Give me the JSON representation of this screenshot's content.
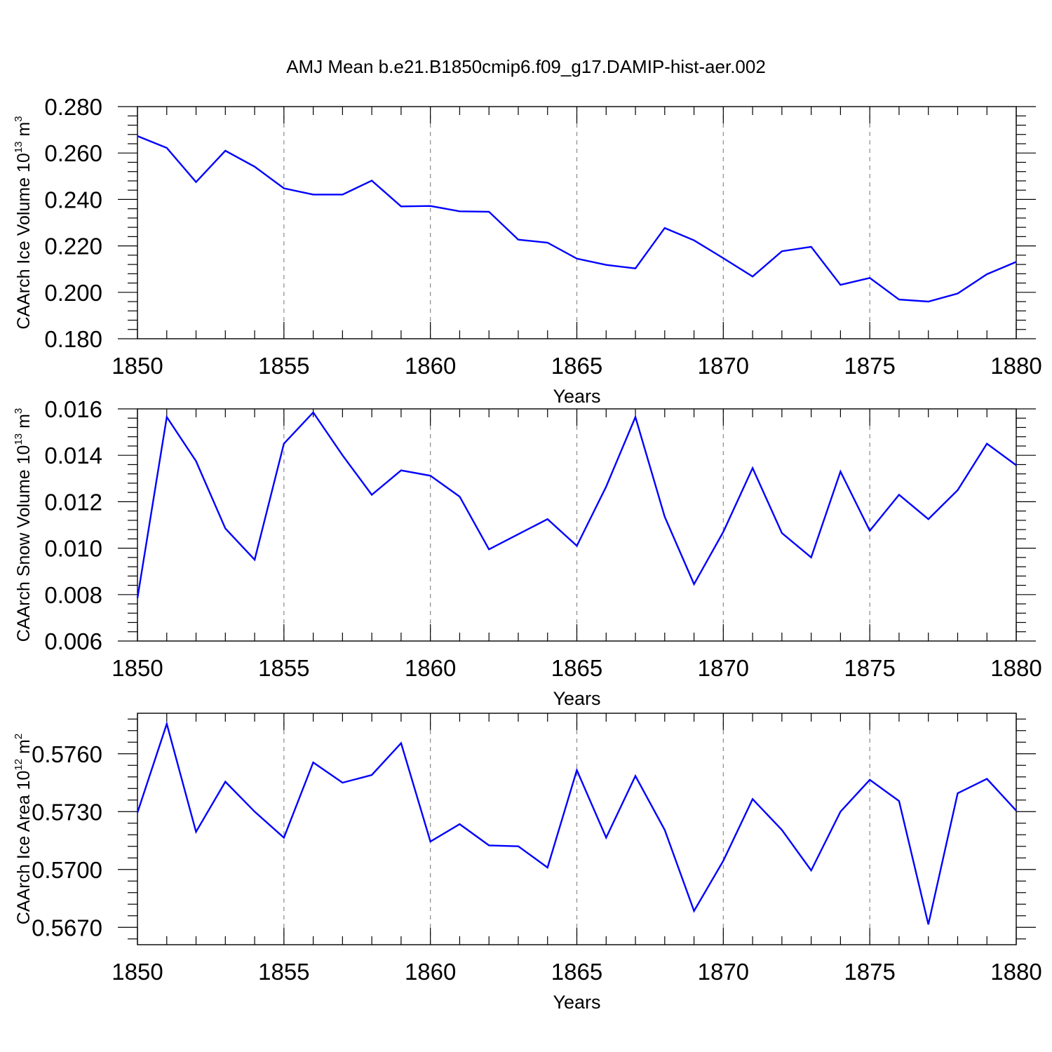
{
  "title": "AMJ Mean b.e21.B1850cmip6.f09_g17.DAMIP-hist-aer.002",
  "colors": {
    "line": "#0000ff",
    "axes": "#000000",
    "grid": "#8a8a8a",
    "background": "#ffffff"
  },
  "chart_data": [
    {
      "type": "line",
      "xlabel": "Years",
      "ylabel": {
        "text": "CAArch Ice Volume 10",
        "exponent": "13",
        "unit": "m",
        "unit_exponent": "3"
      },
      "xlim": [
        1850,
        1880
      ],
      "ylim": [
        0.18,
        0.28
      ],
      "xticks": [
        1850,
        1855,
        1860,
        1865,
        1870,
        1875,
        1880
      ],
      "xtick_labels": [
        "1850",
        "1855",
        "1860",
        "1865",
        "1870",
        "1875",
        "1880"
      ],
      "yticks": [
        0.18,
        0.2,
        0.22,
        0.24,
        0.26,
        0.28
      ],
      "ytick_labels": [
        "0.180",
        "0.200",
        "0.220",
        "0.240",
        "0.260",
        "0.280"
      ],
      "grid": "vertical dashed at major x ticks",
      "series": [
        {
          "x": [
            1850,
            1851,
            1852,
            1853,
            1854,
            1855,
            1856,
            1857,
            1858,
            1859,
            1860,
            1861,
            1862,
            1863,
            1864,
            1865,
            1866,
            1867,
            1868,
            1869,
            1870,
            1871,
            1872,
            1873,
            1874,
            1875,
            1876,
            1877,
            1878,
            1879,
            1880
          ],
          "values": [
            0.2673,
            0.2622,
            0.2475,
            0.261,
            0.2541,
            0.2448,
            0.2421,
            0.2421,
            0.2481,
            0.237,
            0.2372,
            0.2349,
            0.2347,
            0.2227,
            0.2214,
            0.2145,
            0.2118,
            0.2103,
            0.2277,
            0.2224,
            0.2147,
            0.2068,
            0.2177,
            0.2196,
            0.2032,
            0.2062,
            0.1969,
            0.196,
            0.1995,
            0.2078,
            0.2131
          ]
        }
      ]
    },
    {
      "type": "line",
      "xlabel": "Years",
      "ylabel": {
        "text": "CAArch Snow Volume 10",
        "exponent": "13",
        "unit": "m",
        "unit_exponent": "3"
      },
      "xlim": [
        1850,
        1880
      ],
      "ylim": [
        0.006,
        0.016
      ],
      "xticks": [
        1850,
        1855,
        1860,
        1865,
        1870,
        1875,
        1880
      ],
      "xtick_labels": [
        "1850",
        "1855",
        "1860",
        "1865",
        "1870",
        "1875",
        "1880"
      ],
      "yticks": [
        0.006,
        0.008,
        0.01,
        0.012,
        0.014,
        0.016
      ],
      "ytick_labels": [
        "0.006",
        "0.008",
        "0.010",
        "0.012",
        "0.014",
        "0.016"
      ],
      "grid": "vertical dashed at major x ticks",
      "series": [
        {
          "x": [
            1850,
            1851,
            1852,
            1853,
            1854,
            1855,
            1856,
            1857,
            1858,
            1859,
            1860,
            1861,
            1862,
            1863,
            1864,
            1865,
            1866,
            1867,
            1868,
            1869,
            1870,
            1871,
            1872,
            1873,
            1874,
            1875,
            1876,
            1877,
            1878,
            1879,
            1880
          ],
          "values": [
            0.00785,
            0.01565,
            0.01375,
            0.01085,
            0.0095,
            0.0145,
            0.01585,
            0.014,
            0.0123,
            0.01335,
            0.01312,
            0.01222,
            0.00995,
            0.0106,
            0.01125,
            0.0101,
            0.01265,
            0.01565,
            0.01135,
            0.00845,
            0.0107,
            0.01345,
            0.01065,
            0.0096,
            0.0133,
            0.01075,
            0.0123,
            0.01125,
            0.0125,
            0.0145,
            0.01357
          ]
        }
      ]
    },
    {
      "type": "line",
      "xlabel": "Years",
      "ylabel": {
        "text": "CAArch Ice Area 10",
        "exponent": "12",
        "unit": "m",
        "unit_exponent": "2"
      },
      "xlim": [
        1850,
        1880
      ],
      "ylim": [
        0.5661,
        0.5781
      ],
      "xticks": [
        1850,
        1855,
        1860,
        1865,
        1870,
        1875,
        1880
      ],
      "xtick_labels": [
        "1850",
        "1855",
        "1860",
        "1865",
        "1870",
        "1875",
        "1880"
      ],
      "yticks": [
        0.567,
        0.57,
        0.573,
        0.576
      ],
      "ytick_labels": [
        "0.5670",
        "0.5700",
        "0.5730",
        "0.5760"
      ],
      "grid": "vertical dashed at major x ticks",
      "series": [
        {
          "x": [
            1850,
            1851,
            1852,
            1853,
            1854,
            1855,
            1856,
            1857,
            1858,
            1859,
            1860,
            1861,
            1862,
            1863,
            1864,
            1865,
            1866,
            1867,
            1868,
            1869,
            1870,
            1871,
            1872,
            1873,
            1874,
            1875,
            1876,
            1877,
            1878,
            1879,
            1880
          ],
          "values": [
            0.57295,
            0.57755,
            0.57195,
            0.57455,
            0.573,
            0.57165,
            0.57555,
            0.5745,
            0.5749,
            0.57655,
            0.57145,
            0.57235,
            0.57125,
            0.5712,
            0.5701,
            0.57515,
            0.57165,
            0.57485,
            0.57205,
            0.56785,
            0.57045,
            0.57365,
            0.57205,
            0.56995,
            0.573,
            0.57465,
            0.57355,
            0.56715,
            0.57395,
            0.5747,
            0.57305
          ]
        }
      ]
    }
  ]
}
